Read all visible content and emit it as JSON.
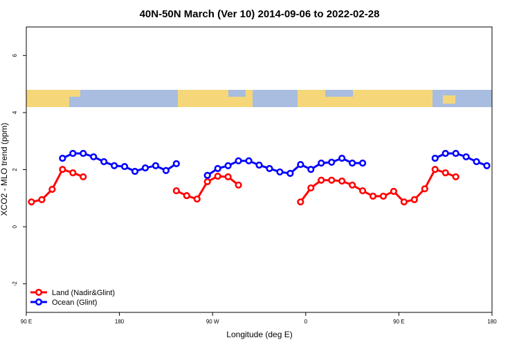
{
  "chart_data": {
    "type": "line",
    "title": "40N-50N March (Ver 10)   2014-09-06 to 2022-02-28",
    "xlabel": "Longitude (deg E)",
    "ylabel": "XCO2 - MLO trend (ppm)",
    "xlim": [
      90,
      540
    ],
    "ylim": [
      -3,
      7
    ],
    "xticks": [
      {
        "value": 90,
        "label": "90 E"
      },
      {
        "value": 180,
        "label": "180"
      },
      {
        "value": 270,
        "label": "90 W"
      },
      {
        "value": 360,
        "label": "0"
      },
      {
        "value": 450,
        "label": "90 E"
      },
      {
        "value": 540,
        "label": "180"
      }
    ],
    "yticks": [
      -2,
      0,
      2,
      4,
      6
    ],
    "legend": "bottom-left",
    "series": [
      {
        "name": "Land (Nadir&Glint)",
        "color": "#ff0000",
        "x": [
          95,
          105,
          115,
          125,
          135,
          145,
          155,
          165,
          175,
          185,
          195,
          205,
          215,
          225,
          235,
          245,
          255,
          265,
          275,
          285,
          295,
          305,
          315,
          325,
          335,
          345,
          355,
          365,
          375,
          385,
          395,
          405,
          415,
          425,
          435,
          445,
          455,
          465,
          475,
          485,
          495,
          505
        ],
        "values": [
          0.87,
          0.95,
          1.31,
          2.01,
          1.89,
          1.75,
          null,
          null,
          null,
          null,
          null,
          null,
          null,
          null,
          1.26,
          1.09,
          0.97,
          1.58,
          1.77,
          1.75,
          1.46,
          null,
          null,
          null,
          null,
          null,
          0.87,
          1.36,
          1.63,
          1.63,
          1.6,
          1.46,
          1.26,
          1.07,
          1.07,
          1.24,
          0.87,
          0.95,
          1.33,
          2.01,
          1.89,
          1.75
        ]
      },
      {
        "name": "Ocean (Glint)",
        "color": "#0000ff",
        "x": [
          125,
          135,
          145,
          155,
          165,
          175,
          185,
          195,
          205,
          215,
          225,
          235,
          245,
          255,
          265,
          275,
          285,
          295,
          305,
          315,
          325,
          335,
          345,
          355,
          365,
          375,
          385,
          395,
          405,
          415,
          425,
          435,
          445,
          455,
          465,
          475,
          485,
          495,
          505,
          515,
          525,
          535
        ],
        "values": [
          2.4,
          2.57,
          2.57,
          2.45,
          2.28,
          2.14,
          2.11,
          1.94,
          2.06,
          2.14,
          1.97,
          2.21,
          null,
          null,
          1.8,
          2.04,
          2.14,
          2.31,
          2.31,
          2.16,
          2.04,
          1.92,
          1.87,
          2.18,
          2.01,
          2.23,
          2.26,
          2.4,
          2.23,
          2.23,
          null,
          null,
          null,
          null,
          null,
          null,
          2.4,
          2.57,
          2.57,
          2.45,
          2.28,
          2.14
        ]
      }
    ]
  }
}
